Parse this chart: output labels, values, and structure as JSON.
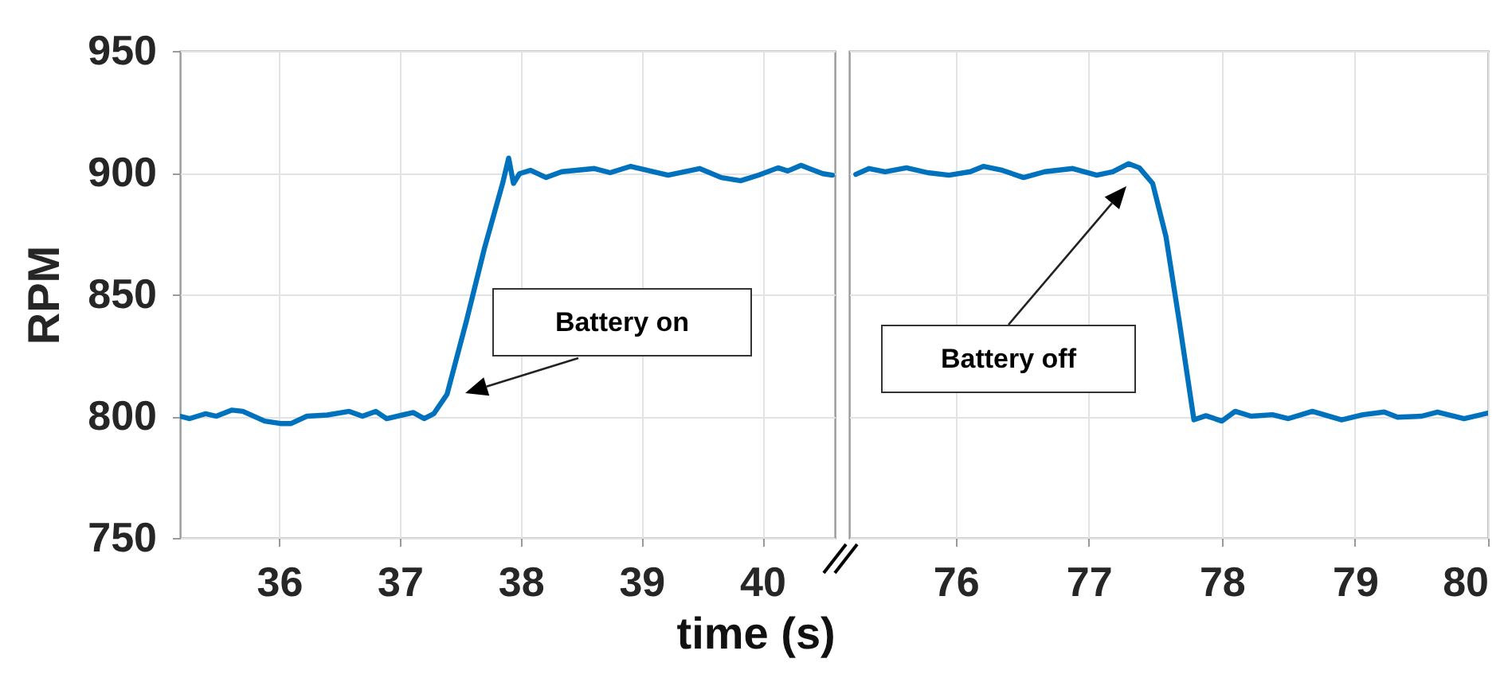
{
  "chart_data": [
    {
      "type": "line",
      "ylabel": "RPM",
      "xlabel": "time (s)",
      "xlim": [
        35.18,
        40.6
      ],
      "xticks": [
        36,
        37,
        38,
        39,
        40
      ],
      "ylim": [
        750,
        950
      ],
      "yticks": [
        750,
        800,
        850,
        900,
        950
      ],
      "grid": true,
      "x": [
        35.18,
        35.26,
        35.39,
        35.48,
        35.61,
        35.7,
        35.88,
        36.01,
        36.1,
        36.23,
        36.4,
        36.58,
        36.69,
        36.8,
        36.89,
        37.11,
        37.2,
        37.28,
        37.39,
        37.55,
        37.7,
        37.85,
        37.9,
        37.94,
        37.99,
        38.08,
        38.21,
        38.34,
        38.61,
        38.74,
        38.91,
        39.22,
        39.48,
        39.66,
        39.82,
        39.97,
        40.13,
        40.21,
        40.32,
        40.5,
        40.58
      ],
      "series": [
        {
          "color": "#0072bd",
          "values": [
            800,
            799,
            801,
            800,
            802.5,
            802,
            798,
            797,
            797,
            800,
            800.5,
            802,
            800,
            802,
            799,
            801.5,
            799,
            801,
            809,
            839,
            869,
            895.6,
            906,
            895.6,
            899.6,
            901,
            898,
            900.4,
            901.7,
            900,
            902.6,
            899,
            901.7,
            898,
            896.7,
            899,
            902,
            900.7,
            903,
            899.6,
            899
          ]
        }
      ],
      "annotations": [
        "Battery on"
      ]
    },
    {
      "type": "line",
      "xlim": [
        75.2,
        80
      ],
      "xticks": [
        76,
        77,
        78,
        79,
        80
      ],
      "ylim": [
        750,
        950
      ],
      "yticks": [
        750,
        800,
        850,
        900,
        950
      ],
      "grid": true,
      "tick_labels": "x",
      "x": [
        75.25,
        75.35,
        75.47,
        75.63,
        75.79,
        75.95,
        76.11,
        76.21,
        76.35,
        76.51,
        76.67,
        76.88,
        77.06,
        77.18,
        77.3,
        77.38,
        77.48,
        77.58,
        77.68,
        77.79,
        77.88,
        78.0,
        78.1,
        78.22,
        78.38,
        78.5,
        78.68,
        78.9,
        79.06,
        79.22,
        79.32,
        79.5,
        79.62,
        79.82,
        80.0
      ],
      "series": [
        {
          "color": "#0072bd",
          "values": [
            899.3,
            901.7,
            900.4,
            902,
            900,
            899,
            900.4,
            902.6,
            901,
            898,
            900.4,
            901.7,
            899,
            900.4,
            903.7,
            902,
            895.6,
            873.8,
            838.9,
            798.5,
            800.2,
            798,
            802,
            800,
            800.6,
            799,
            802,
            798.5,
            800.6,
            801.7,
            799.6,
            800,
            801.7,
            799,
            801.3
          ]
        }
      ],
      "annotations": [
        "Battery off"
      ]
    }
  ]
}
